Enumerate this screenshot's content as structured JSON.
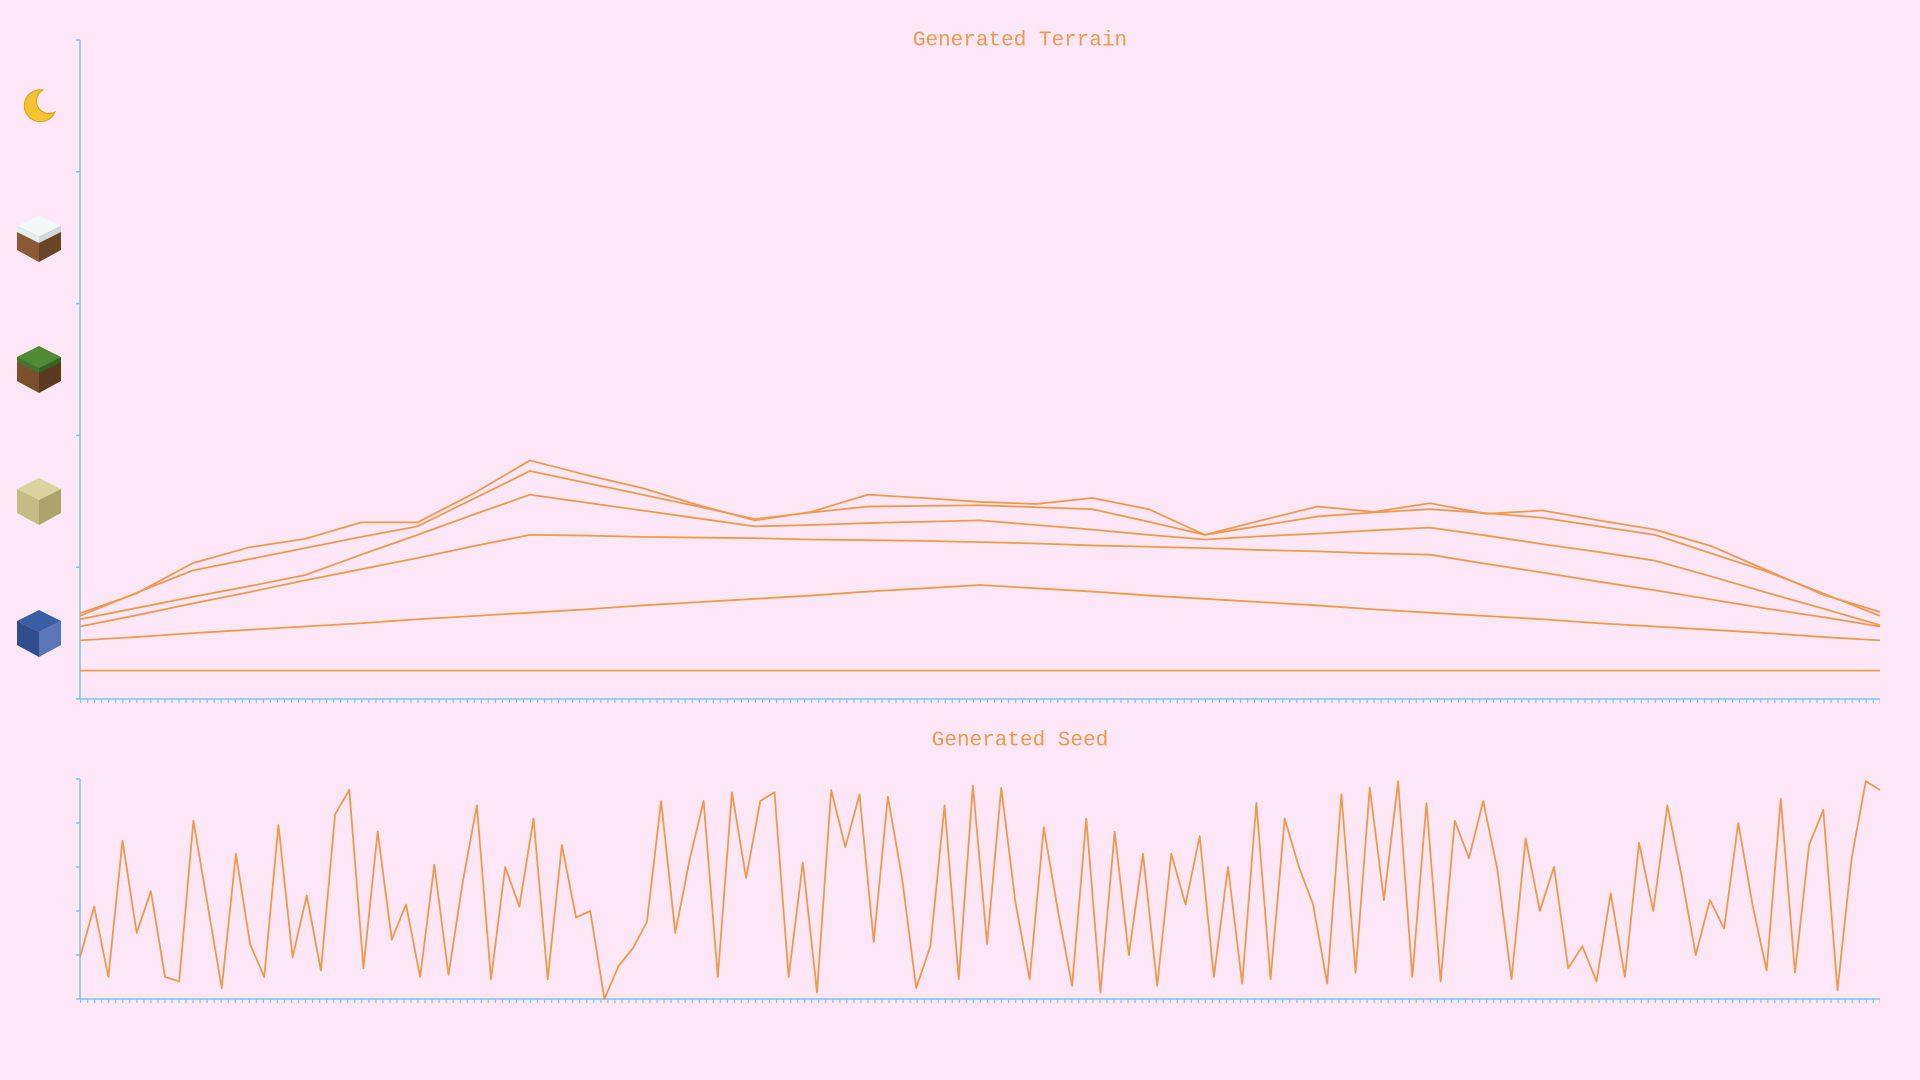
{
  "chart_data": [
    {
      "type": "line",
      "title": "Generated Terrain",
      "ylim": [
        0,
        1
      ],
      "yticks": [
        0,
        0.2,
        0.4,
        0.6,
        0.8,
        1
      ],
      "grid": false,
      "series": [
        {
          "color": "#ee9a4d",
          "values": [
            0.043,
            0.043,
            0.043,
            0.043,
            0.043,
            0.043,
            0.043,
            0.043,
            0.043,
            0.043,
            0.043,
            0.043,
            0.043,
            0.043,
            0.043,
            0.043,
            0.043,
            0.043,
            0.043,
            0.043,
            0.043,
            0.043,
            0.043,
            0.043,
            0.043,
            0.043,
            0.043,
            0.043,
            0.043,
            0.043,
            0.043,
            0.043,
            0.043
          ]
        },
        {
          "color": "#ee9a4d",
          "values": [
            0.089,
            0.094,
            0.1,
            0.105,
            0.11,
            0.115,
            0.121,
            0.126,
            0.131,
            0.136,
            0.142,
            0.147,
            0.152,
            0.157,
            0.163,
            0.168,
            0.173,
            0.168,
            0.163,
            0.157,
            0.152,
            0.147,
            0.142,
            0.136,
            0.131,
            0.126,
            0.121,
            0.115,
            0.11,
            0.105,
            0.1,
            0.094,
            0.089
          ]
        },
        {
          "color": "#ee9a4d",
          "values": [
            0.11,
            0.127,
            0.145,
            0.162,
            0.18,
            0.197,
            0.214,
            0.232,
            0.249,
            0.248,
            0.246,
            0.245,
            0.244,
            0.242,
            0.241,
            0.24,
            0.238,
            0.236,
            0.233,
            0.231,
            0.229,
            0.226,
            0.224,
            0.221,
            0.219,
            0.205,
            0.192,
            0.178,
            0.165,
            0.151,
            0.137,
            0.124,
            0.11
          ]
        },
        {
          "color": "#ee9a4d",
          "values": [
            0.121,
            0.138,
            0.155,
            0.171,
            0.188,
            0.219,
            0.249,
            0.28,
            0.31,
            0.298,
            0.286,
            0.274,
            0.262,
            0.264,
            0.267,
            0.269,
            0.271,
            0.264,
            0.257,
            0.249,
            0.242,
            0.247,
            0.251,
            0.256,
            0.26,
            0.248,
            0.235,
            0.223,
            0.21,
            0.186,
            0.161,
            0.137,
            0.112
          ]
        },
        {
          "color": "#ee9a4d",
          "values": [
            0.126,
            0.161,
            0.195,
            0.212,
            0.229,
            0.246,
            0.262,
            0.304,
            0.346,
            0.328,
            0.31,
            0.292,
            0.273,
            0.283,
            0.292,
            0.293,
            0.294,
            0.291,
            0.288,
            0.269,
            0.249,
            0.263,
            0.277,
            0.283,
            0.288,
            0.282,
            0.275,
            0.262,
            0.249,
            0.221,
            0.193,
            0.16,
            0.126
          ]
        },
        {
          "color": "#ee9a4d",
          "values": [
            0.13,
            0.16,
            0.206,
            0.23,
            0.243,
            0.268,
            0.268,
            0.312,
            0.362,
            0.34,
            0.32,
            0.294,
            0.271,
            0.284,
            0.31,
            0.305,
            0.299,
            0.296,
            0.305,
            0.288,
            0.249,
            0.271,
            0.292,
            0.284,
            0.297,
            0.281,
            0.286,
            0.271,
            0.257,
            0.232,
            0.195,
            0.158,
            0.132
          ]
        }
      ]
    },
    {
      "type": "line",
      "title": "Generated Seed",
      "ylim": [
        0,
        1
      ],
      "yticks": [
        0,
        0.2,
        0.4,
        0.6,
        0.8,
        1
      ],
      "grid": false,
      "series": [
        {
          "color": "#ee9a4d",
          "values": [
            0.19,
            0.42,
            0.1,
            0.72,
            0.3,
            0.49,
            0.1,
            0.08,
            0.81,
            0.43,
            0.05,
            0.66,
            0.25,
            0.1,
            0.79,
            0.19,
            0.47,
            0.13,
            0.84,
            0.95,
            0.14,
            0.76,
            0.27,
            0.43,
            0.1,
            0.61,
            0.11,
            0.53,
            0.88,
            0.09,
            0.6,
            0.42,
            0.82,
            0.09,
            0.7,
            0.37,
            0.4,
            0.0,
            0.15,
            0.23,
            0.35,
            0.9,
            0.3,
            0.63,
            0.9,
            0.1,
            0.94,
            0.55,
            0.9,
            0.94,
            0.1,
            0.62,
            0.03,
            0.95,
            0.69,
            0.93,
            0.26,
            0.92,
            0.55,
            0.05,
            0.24,
            0.88,
            0.09,
            0.97,
            0.25,
            0.96,
            0.44,
            0.09,
            0.78,
            0.4,
            0.06,
            0.82,
            0.03,
            0.76,
            0.2,
            0.66,
            0.06,
            0.66,
            0.43,
            0.74,
            0.1,
            0.6,
            0.07,
            0.89,
            0.09,
            0.82,
            0.6,
            0.43,
            0.07,
            0.93,
            0.12,
            0.96,
            0.45,
            0.99,
            0.1,
            0.89,
            0.08,
            0.81,
            0.64,
            0.9,
            0.59,
            0.09,
            0.73,
            0.4,
            0.6,
            0.14,
            0.24,
            0.08,
            0.48,
            0.1,
            0.71,
            0.4,
            0.88,
            0.56,
            0.2,
            0.45,
            0.32,
            0.8,
            0.43,
            0.13,
            0.91,
            0.12,
            0.7,
            0.86,
            0.04,
            0.64,
            0.99,
            0.95
          ]
        }
      ]
    }
  ]
}
